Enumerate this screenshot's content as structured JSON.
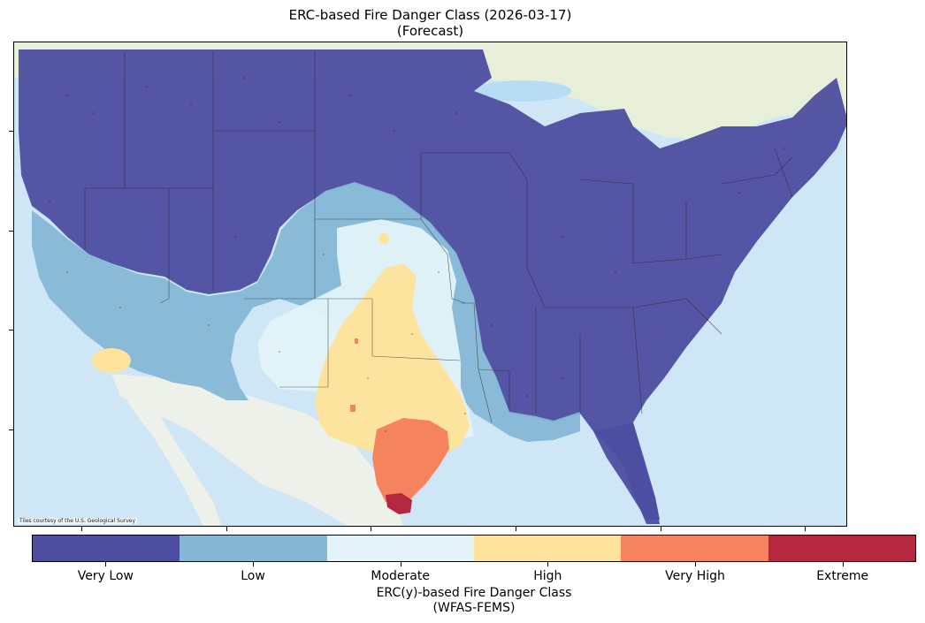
{
  "title": {
    "line1": "ERC-based Fire Danger Class (2026-03-17)",
    "line2": "(Forecast)"
  },
  "map": {
    "attribution": "Tiles courtesy of the U.S. Geological Survey",
    "region": "Contiguous United States",
    "base_colors": {
      "ocean": "#cfe6f7",
      "land": "#eef0ea",
      "canada": "#e7efd9"
    }
  },
  "legend": {
    "title_line1": "ERC(y)-based Fire Danger Class",
    "title_line2": "(WFAS-FEMS)",
    "classes": [
      {
        "label": "Very Low",
        "color": "#4d4ea0"
      },
      {
        "label": "Low",
        "color": "#85b8d6"
      },
      {
        "label": "Moderate",
        "color": "#e3f3f8"
      },
      {
        "label": "High",
        "color": "#fde39c"
      },
      {
        "label": "Very High",
        "color": "#f4835e"
      },
      {
        "label": "Extreme",
        "color": "#b5263f"
      }
    ]
  }
}
